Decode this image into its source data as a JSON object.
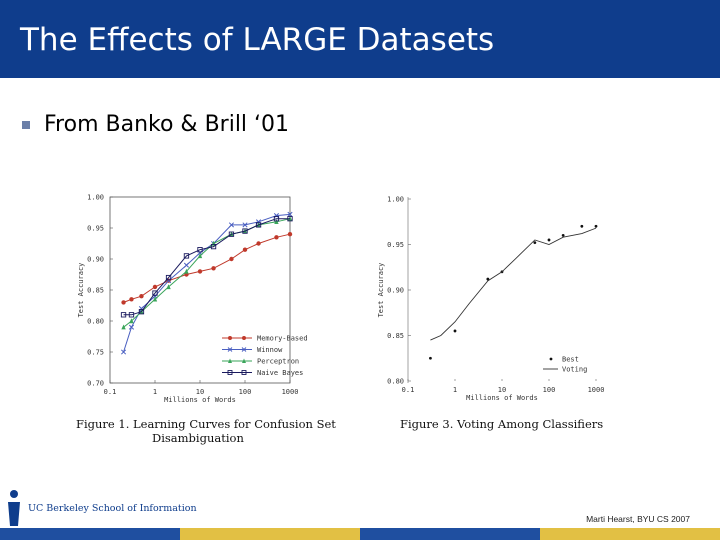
{
  "slide": {
    "title": "The Effects of LARGE Datasets",
    "bullet": "From Banko & Brill ‘01",
    "footer_credit": "Marti Hearst, BYU CS 2007",
    "logo_text": "UC Berkeley School of Information"
  },
  "colors": {
    "title_bar": "#0f3d8c",
    "footer_stripes": [
      "#1f4fa0",
      "#e2c044",
      "#1f4fa0",
      "#e2c044"
    ]
  },
  "chart_data": [
    {
      "type": "line",
      "xscale": "log",
      "xlim": [
        0.1,
        1000
      ],
      "ylim": [
        0.7,
        1.0
      ],
      "xticks": [
        0.1,
        1,
        10,
        100,
        1000
      ],
      "xtick_labels": [
        "0.1",
        "1",
        "10",
        "100",
        "1000"
      ],
      "yticks": [
        0.7,
        0.75,
        0.8,
        0.85,
        0.9,
        0.95,
        1.0
      ],
      "ytick_labels": [
        "0.70",
        "0.75",
        "0.80",
        "0.85",
        "0.90",
        "0.95",
        "1.00"
      ],
      "xlabel": "Millions of Words",
      "ylabel": "Test Accuracy",
      "caption_line1": "Figure 1. Learning Curves for Confusion Set",
      "caption_line2": "Disambiguation",
      "series": [
        {
          "name": "Memory-Based",
          "color": "#c0392b",
          "marker": "circle",
          "x": [
            0.2,
            0.3,
            0.5,
            1,
            2,
            5,
            10,
            20,
            50,
            100,
            200,
            500,
            1000
          ],
          "y": [
            0.83,
            0.835,
            0.84,
            0.855,
            0.865,
            0.875,
            0.88,
            0.885,
            0.9,
            0.915,
            0.925,
            0.935,
            0.94
          ]
        },
        {
          "name": "Winnow",
          "color": "#4a5fc1",
          "marker": "x",
          "x": [
            0.2,
            0.3,
            0.5,
            1,
            2,
            5,
            10,
            20,
            50,
            100,
            200,
            500,
            1000
          ],
          "y": [
            0.75,
            0.79,
            0.82,
            0.84,
            0.865,
            0.89,
            0.91,
            0.925,
            0.955,
            0.955,
            0.96,
            0.97,
            0.972
          ]
        },
        {
          "name": "Perceptron",
          "color": "#3aa55a",
          "marker": "triangle",
          "x": [
            0.2,
            0.3,
            0.5,
            1,
            2,
            5,
            10,
            20,
            50,
            100,
            200,
            500,
            1000
          ],
          "y": [
            0.79,
            0.8,
            0.815,
            0.835,
            0.855,
            0.88,
            0.905,
            0.925,
            0.94,
            0.945,
            0.955,
            0.96,
            0.965
          ]
        },
        {
          "name": "Naive Bayes",
          "color": "#1a1a5e",
          "marker": "square",
          "x": [
            0.2,
            0.3,
            0.5,
            1,
            2,
            5,
            10,
            20,
            50,
            100,
            200,
            500,
            1000
          ],
          "y": [
            0.81,
            0.81,
            0.815,
            0.845,
            0.87,
            0.905,
            0.915,
            0.92,
            0.94,
            0.945,
            0.955,
            0.965,
            0.965
          ]
        }
      ]
    },
    {
      "type": "scatter",
      "xscale": "log",
      "xlim": [
        0.1,
        1000
      ],
      "ylim": [
        0.8,
        1.0
      ],
      "xticks": [
        0.1,
        1,
        10,
        100,
        1000
      ],
      "xtick_labels": [
        "0.1",
        "1",
        "10",
        "100",
        "1000"
      ],
      "yticks": [
        0.8,
        0.85,
        0.9,
        0.95,
        1.0
      ],
      "ytick_labels": [
        "0.80",
        "0.85",
        "0.90",
        "0.95",
        "1.00"
      ],
      "xlabel": "Millions of Words",
      "ylabel": "Test Accuracy",
      "caption_line1": "Figure 3. Voting Among Classifiers",
      "series": [
        {
          "name": "Best",
          "kind": "points",
          "x": [
            0.3,
            1,
            5,
            10,
            50,
            100,
            200,
            500,
            1000
          ],
          "y": [
            0.825,
            0.855,
            0.912,
            0.92,
            0.952,
            0.955,
            0.96,
            0.97,
            0.97
          ]
        },
        {
          "name": "Voting",
          "kind": "line",
          "x": [
            0.3,
            0.5,
            1,
            2,
            5,
            10,
            20,
            50,
            100,
            200,
            500,
            1000
          ],
          "y": [
            0.845,
            0.85,
            0.865,
            0.885,
            0.91,
            0.92,
            0.935,
            0.955,
            0.95,
            0.958,
            0.962,
            0.968
          ]
        }
      ]
    }
  ]
}
